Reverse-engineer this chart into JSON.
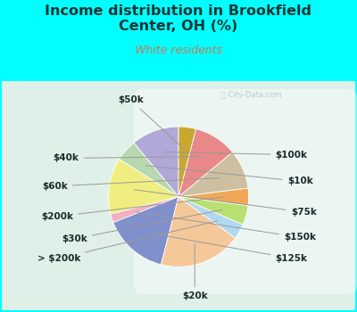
{
  "title": "Income distribution in Brookfield\nCenter, OH (%)",
  "subtitle": "White residents",
  "title_color": "#1a3535",
  "subtitle_color": "#cc7755",
  "background_outer": "#00ffff",
  "background_inner_color1": "#d5ede0",
  "background_inner_color2": "#ffffff",
  "labels": [
    "$100k",
    "$10k",
    "$75k",
    "$150k",
    "$125k",
    "$20k",
    "> $200k",
    "$30k",
    "$200k",
    "$60k",
    "$40k",
    "$50k"
  ],
  "values": [
    11.0,
    5.0,
    13.0,
    2.0,
    15.0,
    19.0,
    3.5,
    4.5,
    4.0,
    9.0,
    10.0,
    4.0
  ],
  "colors": [
    "#b0a8d8",
    "#b8d8b0",
    "#f0ee80",
    "#f0b0c0",
    "#8090cc",
    "#f5c89a",
    "#b0d8f0",
    "#b8e070",
    "#f0a858",
    "#ccc0a0",
    "#e88888",
    "#c8a830"
  ],
  "startangle": 90,
  "label_fontsize": 7.5,
  "label_color": "#1a2a2a",
  "watermark_color": "#aabbcc",
  "watermark_alpha": 0.75
}
